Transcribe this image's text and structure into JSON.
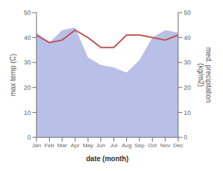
{
  "chart_data": {
    "type": "line",
    "categories": [
      "Jan",
      "Feb",
      "Mar",
      "Apr",
      "May",
      "Jun",
      "Jul",
      "Aug",
      "Sep",
      "Oct",
      "Nov",
      "Dec"
    ],
    "series": [
      {
        "type": "area",
        "axis": "y2",
        "color": "#b8c0e8",
        "values": [
          42,
          38,
          43,
          44,
          32,
          29,
          28,
          26,
          31,
          40,
          43,
          42
        ]
      },
      {
        "type": "line",
        "color": "#c0504d",
        "values": [
          41,
          38,
          39,
          43,
          40,
          36,
          36,
          41,
          41,
          40,
          39,
          41
        ]
      }
    ],
    "xlabel": "date (month)",
    "ylabel": "max temp (C)",
    "y2label": "med. precipitation\n(kg/m2)",
    "ylim": [
      0,
      50
    ],
    "yticks": [
      0,
      10,
      20,
      30,
      40,
      50
    ],
    "y2lim": [
      0,
      50
    ],
    "y2ticks": [
      0,
      10,
      20,
      30,
      40,
      50
    ],
    "grid": false
  }
}
